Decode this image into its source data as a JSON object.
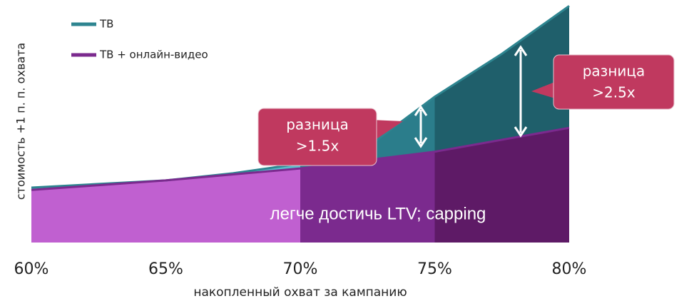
{
  "chart_data": {
    "type": "area",
    "y_label": "стоимость +1 п. п. охвата",
    "x_label": "накопленный охват за кампанию",
    "x": [
      60,
      62.5,
      65,
      67.5,
      70,
      72.5,
      75,
      77.5,
      80
    ],
    "xlim": [
      60,
      80
    ],
    "xticks": [
      {
        "value": 60,
        "label": "60%"
      },
      {
        "value": 65,
        "label": "65%"
      },
      {
        "value": 70,
        "label": "70%"
      },
      {
        "value": 75,
        "label": "75%"
      },
      {
        "value": 80,
        "label": "80%"
      }
    ],
    "ylim": [
      0,
      100
    ],
    "series": [
      {
        "name": "ТВ",
        "color": "#2e8590",
        "values": [
          23,
          24.5,
          26,
          29,
          33,
          40,
          61,
          79,
          99
        ]
      },
      {
        "name": "ТВ + онлайн-видео",
        "color": "#7b2a8e",
        "values": [
          22,
          24,
          26,
          28.5,
          31,
          34.5,
          38,
          43,
          48
        ]
      }
    ],
    "segments": [
      {
        "xlim": [
          60,
          70
        ],
        "colors": [
          "#5bbccb",
          "#c060d0"
        ]
      },
      {
        "xlim": [
          70,
          75
        ],
        "colors": [
          "#2b7d8b",
          "#7b2a8e"
        ]
      },
      {
        "xlim": [
          75,
          80
        ],
        "colors": [
          "#1f5f6b",
          "#5e1a66"
        ]
      }
    ],
    "annotations": [
      {
        "lines": [
          "разница",
          ">1.5x"
        ]
      },
      {
        "lines": [
          "разница",
          ">2.5x"
        ]
      },
      {
        "lines": [
          "легче достичь LTV; capping"
        ]
      }
    ]
  }
}
